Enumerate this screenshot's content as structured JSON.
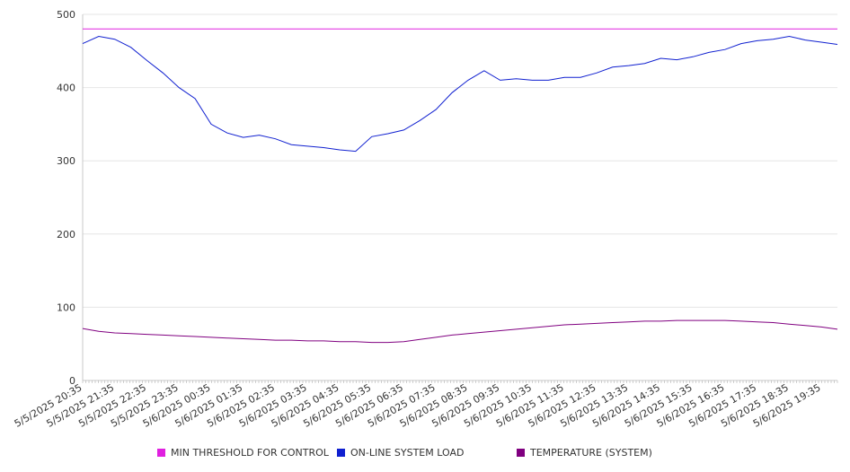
{
  "chart_data": {
    "type": "line",
    "y_ticks": [
      0,
      100,
      200,
      300,
      400,
      500
    ],
    "ylim": [
      0,
      500
    ],
    "x_tick_labels": [
      "5/5/2025 20:35",
      "5/5/2025 21:35",
      "5/5/2025 22:35",
      "5/5/2025 23:35",
      "5/6/2025 00:35",
      "5/6/2025 01:35",
      "5/6/2025 02:35",
      "5/6/2025 03:35",
      "5/6/2025 04:35",
      "5/6/2025 05:35",
      "5/6/2025 06:35",
      "5/6/2025 07:35",
      "5/6/2025 08:35",
      "5/6/2025 09:35",
      "5/6/2025 10:35",
      "5/6/2025 11:35",
      "5/6/2025 12:35",
      "5/6/2025 13:35",
      "5/6/2025 14:35",
      "5/6/2025 15:35",
      "5/6/2025 16:35",
      "5/6/2025 17:35",
      "5/6/2025 18:35",
      "5/6/2025 19:35"
    ],
    "x_start": "5/5/2025 20:35",
    "x_step_minutes": 30,
    "grid": true,
    "legend_position": "bottom",
    "series": [
      {
        "name": "MIN THRESHOLD FOR CONTROL",
        "color": "#e020e0",
        "values": [
          480,
          480,
          480,
          480,
          480,
          480,
          480,
          480,
          480,
          480,
          480,
          480,
          480,
          480,
          480,
          480,
          480,
          480,
          480,
          480,
          480,
          480,
          480,
          480,
          480,
          480,
          480,
          480,
          480,
          480,
          480,
          480,
          480,
          480,
          480,
          480,
          480,
          480,
          480,
          480,
          480,
          480,
          480,
          480,
          480,
          480,
          480,
          480
        ]
      },
      {
        "name": "ON-LINE SYSTEM LOAD",
        "color": "#1020d0",
        "values": [
          460,
          470,
          466,
          455,
          437,
          420,
          400,
          385,
          350,
          338,
          332,
          335,
          330,
          322,
          320,
          318,
          315,
          313,
          333,
          337,
          342,
          355,
          370,
          393,
          410,
          423,
          410,
          412,
          410,
          410,
          414,
          414,
          420,
          428,
          430,
          433,
          440,
          438,
          442,
          448,
          452,
          460,
          464,
          466,
          470,
          465,
          462,
          459
        ]
      },
      {
        "name": "TEMPERATURE (SYSTEM)",
        "color": "#800080",
        "values": [
          71,
          67,
          65,
          64,
          63,
          62,
          61,
          60,
          59,
          58,
          57,
          56,
          55,
          55,
          54,
          54,
          53,
          53,
          52,
          52,
          53,
          56,
          59,
          62,
          64,
          66,
          68,
          70,
          72,
          74,
          76,
          77,
          78,
          79,
          80,
          81,
          81,
          82,
          82,
          82,
          82,
          81,
          80,
          79,
          77,
          75,
          73,
          70
        ]
      }
    ]
  }
}
